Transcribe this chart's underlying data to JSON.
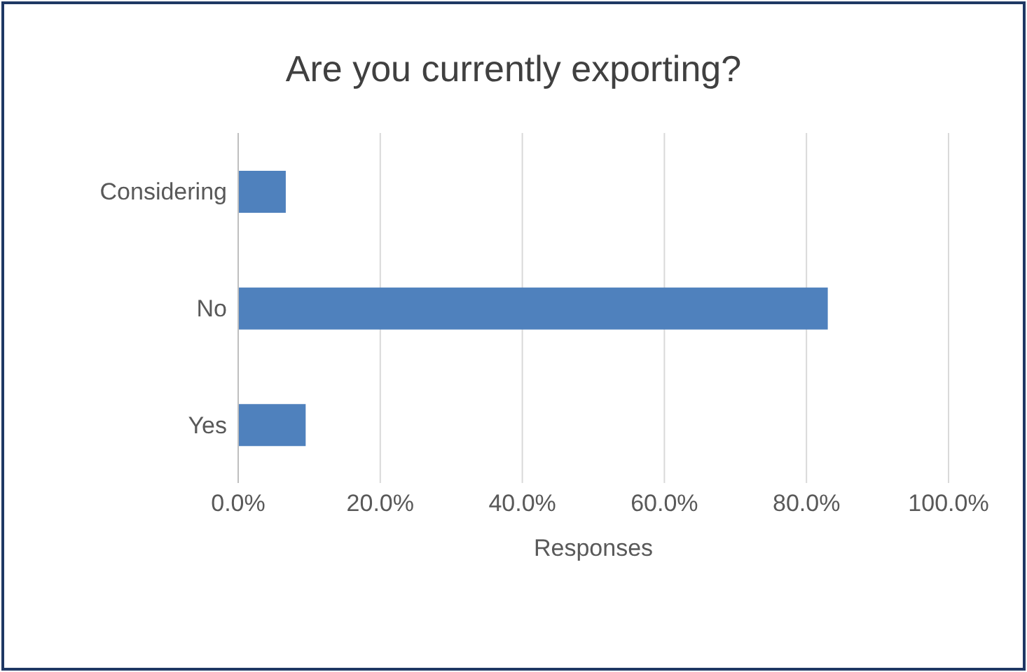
{
  "chart_data": {
    "type": "bar",
    "orientation": "horizontal",
    "title": "Are you currently exporting?",
    "xlabel": "Responses",
    "categories": [
      "Considering",
      "No",
      "Yes"
    ],
    "values": [
      6.7,
      83,
      9.5
    ],
    "color": "#4f81bd",
    "xlim": [
      0,
      100
    ],
    "xticks": [
      {
        "value": 0,
        "label": "0.0%"
      },
      {
        "value": 20,
        "label": "20.0%"
      },
      {
        "value": 40,
        "label": "40.0%"
      },
      {
        "value": 60,
        "label": "60.0%"
      },
      {
        "value": 80,
        "label": "80.0%"
      },
      {
        "value": 100,
        "label": "100.0%"
      }
    ],
    "grid": "x"
  }
}
